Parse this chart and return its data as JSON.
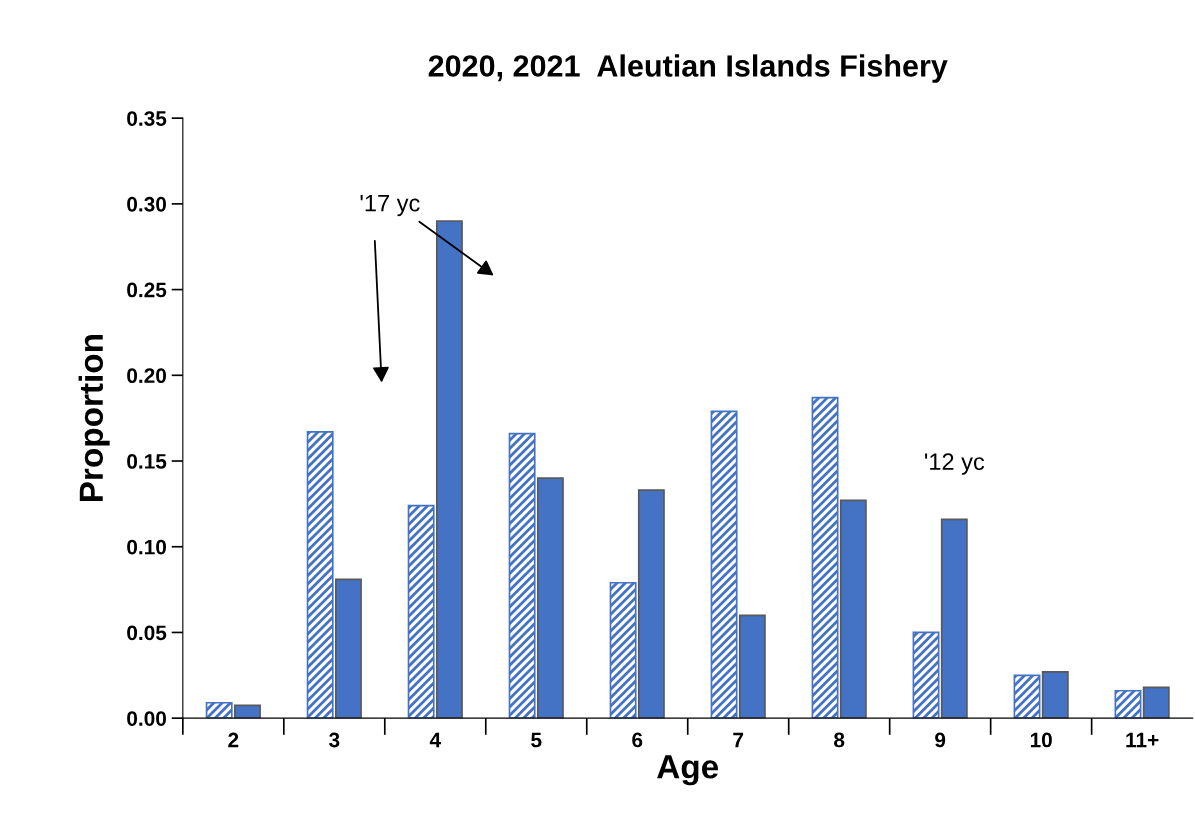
{
  "chart_data": {
    "type": "bar",
    "title": "2020, 2021  Aleutian Islands Fishery",
    "xlabel": "Age",
    "ylabel": "Proportion",
    "categories": [
      "2",
      "3",
      "4",
      "5",
      "6",
      "7",
      "8",
      "9",
      "10",
      "11+"
    ],
    "series": [
      {
        "color": "#4472c4",
        "values": [
          0.009,
          0.167,
          0.124,
          0.166,
          0.079,
          0.179,
          0.187,
          0.05,
          0.025,
          0.016
        ]
      },
      {
        "color": "#4472c4",
        "values": [
          0.0075,
          0.081,
          0.29,
          0.14,
          0.133,
          0.06,
          0.127,
          0.116,
          0.027,
          0.018
        ]
      }
    ],
    "ylim": [
      0,
      0.35
    ],
    "yticks": [
      {
        "value": 0,
        "label": "0.00"
      },
      {
        "value": 0.05,
        "label": "0.05"
      },
      {
        "value": 0.1,
        "label": "0.10"
      },
      {
        "value": 0.15,
        "label": "0.15"
      },
      {
        "value": 0.2,
        "label": "0.20"
      },
      {
        "value": 0.25,
        "label": "0.25"
      },
      {
        "value": 0.3,
        "label": "0.30"
      },
      {
        "value": 0.35,
        "label": "0.35"
      }
    ],
    "grid": false,
    "legend": false,
    "annotations": [
      "'17 yc",
      {
        "text": "'12 yc",
        "x": "9",
        "y": 0.116
      }
    ]
  }
}
